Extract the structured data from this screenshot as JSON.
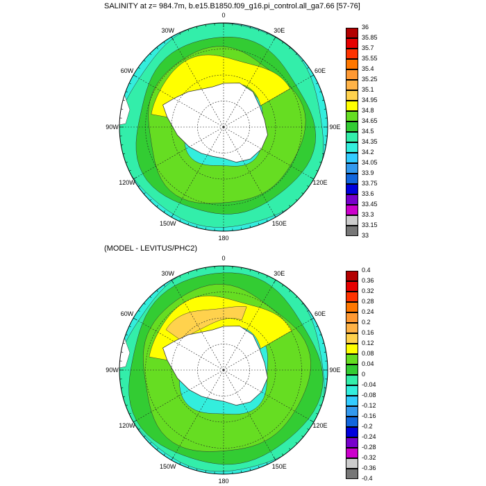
{
  "panels": [
    {
      "title": "SALINITY at z= 984.7m, b.e15.B1850.f09_g16.pi_control.all_ga7.66 [57-76]",
      "lon_labels": [
        "0",
        "30E",
        "60E",
        "90E",
        "120E",
        "150E",
        "180",
        "150W",
        "120W",
        "90W",
        "60W",
        "30W"
      ],
      "colorbar": {
        "labels": [
          "36",
          "35.85",
          "35.7",
          "35.55",
          "35.4",
          "35.25",
          "35.1",
          "34.95",
          "34.8",
          "34.65",
          "34.5",
          "34.35",
          "34.2",
          "34.05",
          "33.9",
          "33.75",
          "33.6",
          "33.45",
          "33.3",
          "33.15",
          "33"
        ],
        "colors": [
          "#b30000",
          "#e60000",
          "#ff3300",
          "#ff7700",
          "#ff9933",
          "#ffb347",
          "#ffd24d",
          "#ffff00",
          "#66dd22",
          "#33cc33",
          "#33eeaa",
          "#33eedd",
          "#33ccff",
          "#3399ee",
          "#1166dd",
          "#0000dd",
          "#7700cc",
          "#cc00cc",
          "#cccccc",
          "#777777"
        ]
      },
      "regions": [
        {
          "level": "34.5",
          "color": "#33eeaa",
          "r0": 0.72,
          "r1": 0.98
        },
        {
          "level": "34.65",
          "color": "#33cc33",
          "r0": 0.55,
          "r1": 0.85
        },
        {
          "level": "34.8",
          "color": "#66dd22",
          "r0": 0.4,
          "r1": 0.75
        },
        {
          "level": "34.95",
          "color": "#ffff00",
          "r0": 0.42,
          "r1": 0.7,
          "lon0": -80,
          "lon1": 60
        }
      ]
    },
    {
      "title": "(MODEL - LEVITUS/PHC2)",
      "lon_labels": [
        "0",
        "30E",
        "60E",
        "90E",
        "120E",
        "150E",
        "180",
        "150W",
        "120W",
        "90W",
        "60W",
        "30W"
      ],
      "colorbar": {
        "labels": [
          "0.4",
          "0.36",
          "0.32",
          "0.28",
          "0.24",
          "0.2",
          "0.16",
          "0.12",
          "0.08",
          "0.04",
          "0",
          "-0.04",
          "-0.08",
          "-0.12",
          "-0.16",
          "-0.2",
          "-0.24",
          "-0.28",
          "-0.32",
          "-0.36",
          "-0.4"
        ],
        "colors": [
          "#b30000",
          "#e60000",
          "#ff3300",
          "#ff7700",
          "#ff9933",
          "#ffb347",
          "#ffd24d",
          "#ffff00",
          "#66dd22",
          "#33cc33",
          "#33eeaa",
          "#33eedd",
          "#33ccff",
          "#3399ee",
          "#1166dd",
          "#0000dd",
          "#7700cc",
          "#cc00cc",
          "#cccccc",
          "#777777"
        ]
      },
      "regions": [
        {
          "level": "0",
          "color": "#33eeaa",
          "r0": 0.8,
          "r1": 0.99
        },
        {
          "level": "0.04",
          "color": "#33cc33",
          "r0": 0.6,
          "r1": 0.92
        },
        {
          "level": "0.08",
          "color": "#66dd22",
          "r0": 0.45,
          "r1": 0.8
        },
        {
          "level": "0.12",
          "color": "#ffff00",
          "r0": 0.42,
          "r1": 0.72,
          "lon0": -80,
          "lon1": 60
        },
        {
          "level": "0.16",
          "color": "#ffd24d",
          "r0": 0.48,
          "r1": 0.64,
          "lon0": -55,
          "lon1": 20
        }
      ]
    }
  ]
}
